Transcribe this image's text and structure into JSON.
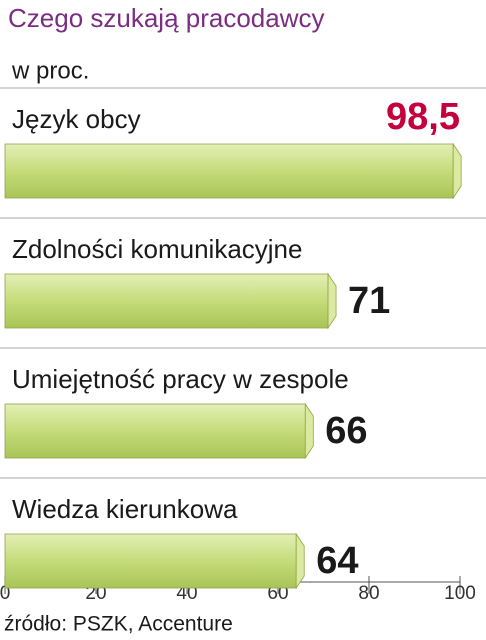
{
  "chart_data": {
    "type": "bar",
    "orientation": "horizontal",
    "title": "Czego szukają pracodawcy",
    "subtitle": "w proc.",
    "categories": [
      "Język obcy",
      "Zdolności komunikacyjne",
      "Umiejętność pracy w zespole",
      "Wiedza kierunkowa"
    ],
    "values": [
      98.5,
      71,
      66,
      64
    ],
    "value_labels": [
      "98,5",
      "71",
      "66",
      "64"
    ],
    "value_label_colors": [
      "#c4003d",
      "#1a1a1a",
      "#1a1a1a",
      "#1a1a1a"
    ],
    "color": "#c5dc7a",
    "xlim": [
      0,
      100
    ],
    "xticks": [
      0,
      20,
      40,
      60,
      80,
      100
    ],
    "source": "źródło: PSZK, Accenture"
  }
}
